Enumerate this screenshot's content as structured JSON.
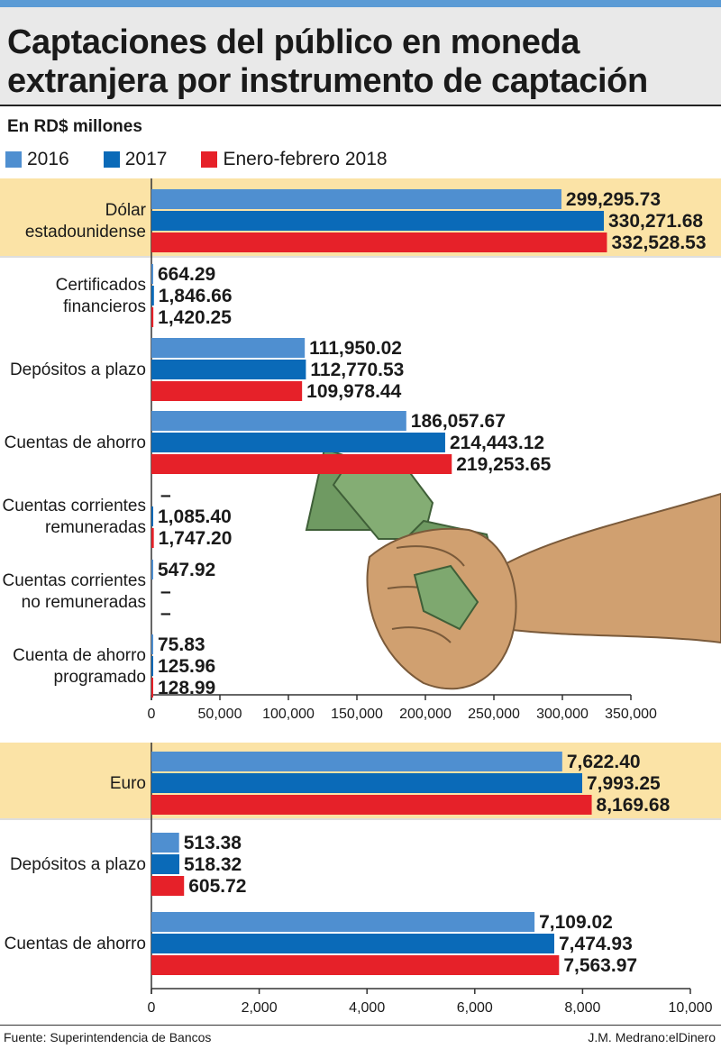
{
  "header": {
    "title_line1": "Captaciones del público en moneda",
    "title_line2": "extranjera por instrumento de captación",
    "unit": "En RD$ millones"
  },
  "legend": [
    {
      "label": "2016",
      "color": "#4f8fd0"
    },
    {
      "label": "2017",
      "color": "#0a6ab8"
    },
    {
      "label": "Enero-febrero 2018",
      "color": "#e62129"
    }
  ],
  "colors": {
    "highlight_band": "#fbe3a6",
    "separator": "#bdbdbd",
    "axis": "#333333",
    "hand": "#d0a070",
    "money": "#6f9a62"
  },
  "chart_data": [
    {
      "type": "bar",
      "orientation": "horizontal",
      "title": "Dólar estadounidense",
      "xlim": [
        0,
        350000
      ],
      "ticks": [
        "0",
        "50,000",
        "100,000",
        "150,000",
        "200,000",
        "250,000",
        "300,000",
        "350,000"
      ],
      "series_names": [
        "2016",
        "2017",
        "Enero-febrero 2018"
      ],
      "categories": [
        {
          "lines": [
            "Dólar",
            "estadounidense"
          ],
          "highlight": true,
          "values": [
            299295.73,
            330271.68,
            332528.53
          ],
          "labels": [
            "299,295.73",
            "330,271.68",
            "332,528.53"
          ]
        },
        {
          "lines": [
            "Certificados",
            "financieros"
          ],
          "values": [
            664.29,
            1846.66,
            1420.25
          ],
          "labels": [
            "664.29",
            "1,846.66",
            "1,420.25"
          ]
        },
        {
          "lines": [
            "Depósitos a plazo"
          ],
          "values": [
            111950.02,
            112770.53,
            109978.44
          ],
          "labels": [
            "111,950.02",
            "112,770.53",
            "109,978.44"
          ]
        },
        {
          "lines": [
            "Cuentas de ahorro"
          ],
          "values": [
            186057.67,
            214443.12,
            219253.65
          ],
          "labels": [
            "186,057.67",
            "214,443.12",
            "219,253.65"
          ]
        },
        {
          "lines": [
            "Cuentas corrientes",
            "remuneradas"
          ],
          "values": [
            null,
            1085.4,
            1747.2
          ],
          "labels": [
            "–",
            "1,085.40",
            "1,747.20"
          ]
        },
        {
          "lines": [
            "Cuentas corrientes",
            "no remuneradas"
          ],
          "values": [
            547.92,
            null,
            null
          ],
          "labels": [
            "547.92",
            "–",
            "–"
          ]
        },
        {
          "lines": [
            "Cuenta de ahorro",
            "programado"
          ],
          "values": [
            75.83,
            125.96,
            128.99
          ],
          "labels": [
            "75.83",
            "125.96",
            "128.99"
          ]
        }
      ]
    },
    {
      "type": "bar",
      "orientation": "horizontal",
      "title": "Euro",
      "xlim": [
        0,
        10000
      ],
      "ticks": [
        "0",
        "2,000",
        "4,000",
        "6,000",
        "8,000",
        "10,000"
      ],
      "series_names": [
        "2016",
        "2017",
        "Enero-febrero 2018"
      ],
      "categories": [
        {
          "lines": [
            "Euro"
          ],
          "highlight": true,
          "values": [
            7622.4,
            7993.25,
            8169.68
          ],
          "labels": [
            "7,622.40",
            "7,993.25",
            "8,169.68"
          ]
        },
        {
          "lines": [
            "Depósitos a plazo"
          ],
          "values": [
            513.38,
            518.32,
            605.72
          ],
          "labels": [
            "513.38",
            "518.32",
            "605.72"
          ]
        },
        {
          "lines": [
            "Cuentas de ahorro"
          ],
          "values": [
            7109.02,
            7474.93,
            7563.97
          ],
          "labels": [
            "7,109.02",
            "7,474.93",
            "7,563.97"
          ]
        }
      ]
    }
  ],
  "footer": {
    "source": "Fuente: Superintendencia de Bancos",
    "credit": "J.M. Medrano:elDinero"
  }
}
